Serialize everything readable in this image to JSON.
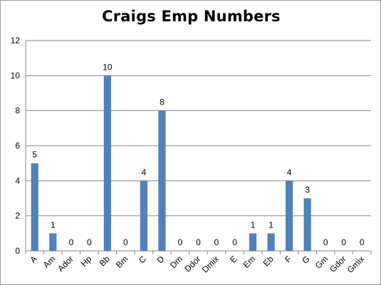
{
  "chart_data": {
    "type": "bar",
    "title": "Craigs Emp Numbers",
    "xlabel": "",
    "ylabel": "",
    "categories": [
      "A",
      "Am",
      "Ador",
      "Hp",
      "Bb",
      "Bm",
      "C",
      "D",
      "Dm",
      "Ddor",
      "Dmix",
      "E",
      "Em",
      "Eb",
      "F",
      "G",
      "Gm",
      "Gdor",
      "Gmix"
    ],
    "values": [
      5,
      1,
      0,
      0,
      10,
      0,
      4,
      8,
      0,
      0,
      0,
      0,
      1,
      1,
      4,
      3,
      0,
      0,
      0
    ],
    "ylim": [
      0,
      12
    ],
    "yticks": [
      0,
      2,
      4,
      6,
      8,
      10,
      12
    ],
    "grid": true,
    "legend": "none",
    "bar_color": "#4f81bd",
    "data_labels": true
  }
}
